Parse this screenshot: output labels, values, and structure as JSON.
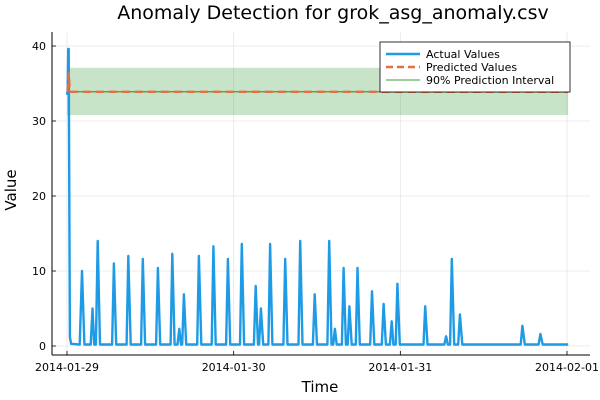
{
  "chart_data": {
    "type": "line",
    "title": "Anomaly Detection for grok_asg_anomaly.csv",
    "xlabel": "Time",
    "ylabel": "Value",
    "xlim": [
      "2014-01-29",
      "2014-02-01"
    ],
    "ylim": [
      -1,
      42
    ],
    "x_ticks": [
      "2014-01-29",
      "2014-01-30",
      "2014-01-31",
      "2014-02-01"
    ],
    "y_ticks": [
      0,
      10,
      20,
      30,
      40
    ],
    "grid": true,
    "legend_position": "top-right",
    "colors": {
      "actual": "#1f9be6",
      "predicted": "#e26f46",
      "interval": "#3a9d3a"
    },
    "series": [
      {
        "name": "Actual Values",
        "style": "solid",
        "points": [
          [
            "2014-01-29 00:00",
            33.5
          ],
          [
            "2014-01-29 00:05",
            34.0
          ],
          [
            "2014-01-29 00:10",
            39.6
          ],
          [
            "2014-01-29 00:15",
            39.6
          ],
          [
            "2014-01-29 00:20",
            20.0
          ],
          [
            "2014-01-29 00:25",
            1.2
          ],
          [
            "2014-01-29 00:35",
            0.3
          ],
          [
            "2014-01-29 01:50",
            0.2
          ],
          [
            "2014-01-29 02:10",
            10.0
          ],
          [
            "2014-01-29 02:30",
            0.2
          ],
          [
            "2014-01-29 03:25",
            0.2
          ],
          [
            "2014-01-29 03:40",
            5.0
          ],
          [
            "2014-01-29 03:55",
            0.2
          ],
          [
            "2014-01-29 04:10",
            0.2
          ],
          [
            "2014-01-29 04:25",
            14.0
          ],
          [
            "2014-01-29 04:45",
            0.2
          ],
          [
            "2014-01-29 06:30",
            0.2
          ],
          [
            "2014-01-29 06:45",
            11.0
          ],
          [
            "2014-01-29 07:05",
            0.2
          ],
          [
            "2014-01-29 08:35",
            0.2
          ],
          [
            "2014-01-29 08:50",
            12.0
          ],
          [
            "2014-01-29 09:10",
            0.2
          ],
          [
            "2014-01-29 10:40",
            0.2
          ],
          [
            "2014-01-29 10:55",
            11.6
          ],
          [
            "2014-01-29 11:15",
            0.2
          ],
          [
            "2014-01-29 12:50",
            0.2
          ],
          [
            "2014-01-29 13:05",
            10.4
          ],
          [
            "2014-01-29 13:25",
            0.2
          ],
          [
            "2014-01-29 14:55",
            0.2
          ],
          [
            "2014-01-29 15:10",
            12.3
          ],
          [
            "2014-01-29 15:30",
            0.2
          ],
          [
            "2014-01-29 15:55",
            0.2
          ],
          [
            "2014-01-29 16:10",
            2.3
          ],
          [
            "2014-01-29 16:25",
            0.2
          ],
          [
            "2014-01-29 16:35",
            0.2
          ],
          [
            "2014-01-29 16:50",
            6.9
          ],
          [
            "2014-01-29 17:10",
            0.2
          ],
          [
            "2014-01-29 18:45",
            0.2
          ],
          [
            "2014-01-29 19:00",
            12.0
          ],
          [
            "2014-01-29 19:20",
            0.2
          ],
          [
            "2014-01-29 20:50",
            0.2
          ],
          [
            "2014-01-29 21:05",
            13.3
          ],
          [
            "2014-01-29 21:25",
            0.2
          ],
          [
            "2014-01-29 22:55",
            0.2
          ],
          [
            "2014-01-29 23:10",
            11.6
          ],
          [
            "2014-01-29 23:30",
            0.2
          ],
          [
            "2014-01-30 00:55",
            0.2
          ],
          [
            "2014-01-30 01:10",
            13.6
          ],
          [
            "2014-01-30 01:30",
            0.2
          ],
          [
            "2014-01-30 02:55",
            0.2
          ],
          [
            "2014-01-30 03:10",
            8.0
          ],
          [
            "2014-01-30 03:30",
            0.2
          ],
          [
            "2014-01-30 03:40",
            0.2
          ],
          [
            "2014-01-30 03:55",
            5.0
          ],
          [
            "2014-01-30 04:15",
            0.2
          ],
          [
            "2014-01-30 05:00",
            0.2
          ],
          [
            "2014-01-30 05:15",
            13.6
          ],
          [
            "2014-01-30 05:35",
            0.2
          ],
          [
            "2014-01-30 07:10",
            0.2
          ],
          [
            "2014-01-30 07:25",
            11.6
          ],
          [
            "2014-01-30 07:45",
            0.2
          ],
          [
            "2014-01-30 09:20",
            0.2
          ],
          [
            "2014-01-30 09:35",
            14.0
          ],
          [
            "2014-01-30 09:55",
            0.2
          ],
          [
            "2014-01-30 11:25",
            0.2
          ],
          [
            "2014-01-30 11:40",
            6.9
          ],
          [
            "2014-01-30 12:00",
            0.2
          ],
          [
            "2014-01-30 13:30",
            0.2
          ],
          [
            "2014-01-30 13:45",
            14.0
          ],
          [
            "2014-01-30 14:05",
            0.2
          ],
          [
            "2014-01-30 14:20",
            0.2
          ],
          [
            "2014-01-30 14:35",
            2.3
          ],
          [
            "2014-01-30 14:50",
            0.2
          ],
          [
            "2014-01-30 15:35",
            0.2
          ],
          [
            "2014-01-30 15:50",
            10.4
          ],
          [
            "2014-01-30 16:10",
            0.2
          ],
          [
            "2014-01-30 16:25",
            0.2
          ],
          [
            "2014-01-30 16:40",
            5.3
          ],
          [
            "2014-01-30 17:00",
            0.2
          ],
          [
            "2014-01-30 17:35",
            0.2
          ],
          [
            "2014-01-30 17:50",
            10.4
          ],
          [
            "2014-01-30 18:10",
            0.2
          ],
          [
            "2014-01-30 19:40",
            0.2
          ],
          [
            "2014-01-30 19:55",
            7.3
          ],
          [
            "2014-01-30 20:15",
            0.2
          ],
          [
            "2014-01-30 21:20",
            0.2
          ],
          [
            "2014-01-30 21:35",
            5.6
          ],
          [
            "2014-01-30 21:55",
            0.2
          ],
          [
            "2014-01-30 22:30",
            0.2
          ],
          [
            "2014-01-30 22:45",
            3.3
          ],
          [
            "2014-01-30 23:00",
            0.2
          ],
          [
            "2014-01-30 23:20",
            0.2
          ],
          [
            "2014-01-30 23:35",
            8.3
          ],
          [
            "2014-01-30 23:55",
            0.2
          ],
          [
            "2014-01-31 03:20",
            0.2
          ],
          [
            "2014-01-31 03:35",
            5.3
          ],
          [
            "2014-01-31 03:55",
            0.2
          ],
          [
            "2014-01-31 06:20",
            0.2
          ],
          [
            "2014-01-31 06:35",
            1.3
          ],
          [
            "2014-01-31 06:50",
            0.2
          ],
          [
            "2014-01-31 07:10",
            0.2
          ],
          [
            "2014-01-31 07:25",
            11.6
          ],
          [
            "2014-01-31 07:45",
            0.2
          ],
          [
            "2014-01-31 08:20",
            0.2
          ],
          [
            "2014-01-31 08:35",
            4.2
          ],
          [
            "2014-01-31 08:55",
            0.2
          ],
          [
            "2014-01-31 17:20",
            0.2
          ],
          [
            "2014-01-31 17:35",
            2.7
          ],
          [
            "2014-01-31 17:55",
            0.2
          ],
          [
            "2014-01-31 19:55",
            0.2
          ],
          [
            "2014-01-31 20:10",
            1.6
          ],
          [
            "2014-01-31 20:30",
            0.2
          ],
          [
            "2014-02-01 00:10",
            0.2
          ]
        ]
      },
      {
        "name": "Predicted Values",
        "style": "dashed",
        "points": [
          [
            "2014-01-29 00:05",
            33.9
          ],
          [
            "2014-01-29 00:15",
            36.5
          ],
          [
            "2014-01-29 00:25",
            33.9
          ],
          [
            "2014-02-01 00:10",
            33.9
          ]
        ]
      },
      {
        "name": "90% Prediction Interval",
        "style": "band",
        "center": 33.9,
        "lower": 30.8,
        "upper": 37.1,
        "x_range": [
          "2014-01-29 00:00",
          "2014-02-01 00:10"
        ]
      }
    ]
  }
}
